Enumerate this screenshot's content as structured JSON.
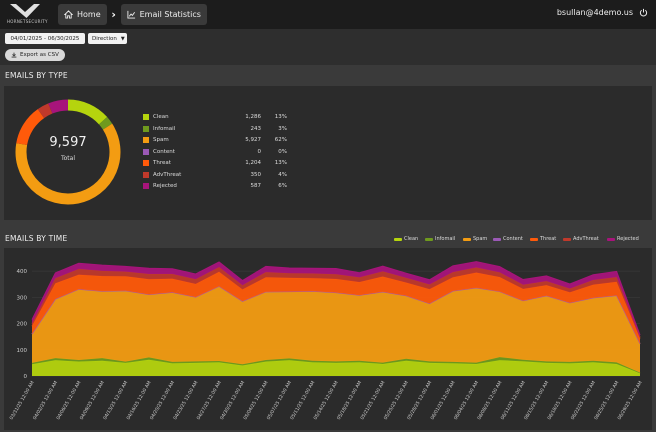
{
  "header": {
    "logo_text": "HORNETSECURITY",
    "home_label": "Home",
    "page_label": "Email Statistics",
    "user": "bsullan@4demo.us"
  },
  "filters": {
    "date_range": "04/01/2025 - 06/30/2025",
    "direction_label": "Direction",
    "export_label": "Export as CSV"
  },
  "by_type": {
    "title": "EMAILS BY TYPE",
    "total_value": "9,597",
    "total_label": "Total",
    "rows": [
      {
        "name": "Clean",
        "count": "1,286",
        "pct": "13%",
        "color": "#b5d40e"
      },
      {
        "name": "Infomail",
        "count": "243",
        "pct": "3%",
        "color": "#6f9a1e"
      },
      {
        "name": "Spam",
        "count": "5,927",
        "pct": "62%",
        "color": "#f39c12"
      },
      {
        "name": "Content",
        "count": "0",
        "pct": "0%",
        "color": "#9b59b6"
      },
      {
        "name": "Threat",
        "count": "1,204",
        "pct": "13%",
        "color": "#ff5a0a"
      },
      {
        "name": "AdvThreat",
        "count": "350",
        "pct": "4%",
        "color": "#c0392b"
      },
      {
        "name": "Rejected",
        "count": "587",
        "pct": "6%",
        "color": "#a7147b"
      }
    ]
  },
  "by_time": {
    "title": "EMAILS BY TIME"
  },
  "chart_data": [
    {
      "type": "pie",
      "categories": [
        "Clean",
        "Infomail",
        "Spam",
        "Content",
        "Threat",
        "AdvThreat",
        "Rejected"
      ],
      "values": [
        1286,
        243,
        5927,
        0,
        1204,
        350,
        587
      ],
      "colors": [
        "#b5d40e",
        "#6f9a1e",
        "#f39c12",
        "#9b59b6",
        "#ff5a0a",
        "#c0392b",
        "#a7147b"
      ],
      "title": "EMAILS BY TYPE",
      "donut": true
    },
    {
      "type": "area",
      "stacked": true,
      "title": "EMAILS BY TIME",
      "x": [
        "03/31/25 12:00 AM",
        "04/02/25 12:00 AM",
        "04/06/25 12:00 AM",
        "04/09/25 12:00 AM",
        "04/13/25 12:00 AM",
        "04/16/25 12:00 AM",
        "04/20/25 12:00 AM",
        "04/23/25 12:00 AM",
        "04/27/25 12:00 AM",
        "04/30/25 12:00 AM",
        "05/04/25 12:00 AM",
        "05/07/25 12:00 AM",
        "05/11/25 12:00 AM",
        "05/14/25 12:00 AM",
        "05/18/25 12:00 AM",
        "05/21/25 12:00 AM",
        "05/25/25 12:00 AM",
        "05/28/25 12:00 AM",
        "06/01/25 12:00 AM",
        "06/04/25 12:00 AM",
        "06/08/25 12:00 AM",
        "06/11/25 12:00 AM",
        "06/15/25 12:00 AM",
        "06/18/25 12:00 AM",
        "06/22/25 12:00 AM",
        "06/25/25 12:00 AM",
        "06/29/25 12:00 AM"
      ],
      "series": [
        {
          "name": "Clean",
          "color": "#b5d40e",
          "values": [
            45,
            60,
            55,
            58,
            50,
            62,
            48,
            50,
            52,
            40,
            55,
            60,
            52,
            50,
            52,
            46,
            58,
            50,
            48,
            46,
            60,
            56,
            50,
            48,
            52,
            46,
            10
          ]
        },
        {
          "name": "Infomail",
          "color": "#6f9a1e",
          "values": [
            5,
            8,
            6,
            10,
            5,
            9,
            6,
            6,
            5,
            5,
            6,
            7,
            6,
            6,
            6,
            5,
            8,
            6,
            6,
            5,
            12,
            6,
            6,
            6,
            6,
            6,
            3
          ]
        },
        {
          "name": "Spam",
          "color": "#f39c12",
          "values": [
            110,
            225,
            270,
            255,
            270,
            240,
            265,
            245,
            285,
            240,
            260,
            255,
            265,
            262,
            250,
            270,
            240,
            220,
            270,
            285,
            250,
            225,
            250,
            225,
            240,
            255,
            110
          ]
        },
        {
          "name": "Content",
          "color": "#9b59b6",
          "values": [
            0,
            0,
            0,
            0,
            0,
            0,
            0,
            0,
            0,
            0,
            0,
            0,
            0,
            0,
            0,
            0,
            0,
            0,
            0,
            0,
            0,
            0,
            0,
            0,
            0,
            0,
            0
          ]
        },
        {
          "name": "Threat",
          "color": "#ff5a0a",
          "values": [
            30,
            60,
            55,
            58,
            55,
            58,
            52,
            50,
            55,
            45,
            55,
            52,
            50,
            52,
            50,
            58,
            50,
            55,
            52,
            58,
            55,
            45,
            40,
            40,
            50,
            52,
            20
          ]
        },
        {
          "name": "AdvThreat",
          "color": "#c0392b",
          "values": [
            10,
            20,
            22,
            20,
            18,
            20,
            18,
            18,
            18,
            16,
            20,
            18,
            18,
            18,
            18,
            20,
            18,
            18,
            20,
            20,
            18,
            16,
            16,
            14,
            18,
            18,
            5
          ]
        },
        {
          "name": "Rejected",
          "color": "#a7147b",
          "values": [
            15,
            20,
            22,
            22,
            20,
            22,
            20,
            20,
            20,
            18,
            22,
            20,
            20,
            22,
            18,
            20,
            18,
            18,
            24,
            22,
            22,
            20,
            20,
            18,
            20,
            22,
            8
          ]
        }
      ],
      "ylim": [
        0,
        450
      ],
      "yticks": [
        0,
        100,
        200,
        300,
        400
      ],
      "legend": "top-right"
    }
  ]
}
